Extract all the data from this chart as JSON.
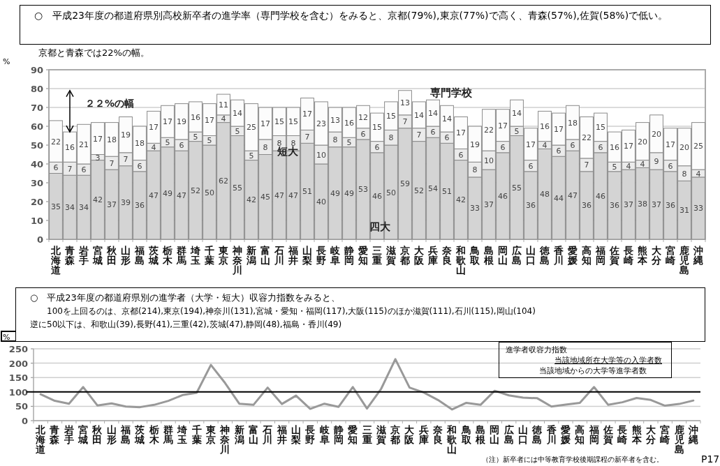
{
  "chart_data": [
    {
      "type": "bar",
      "stacked": true,
      "data_labels": true,
      "grid": "y",
      "title": "○　平成23年度の都道府県別高校新卒者の進学率（専門学校を含む）をみると、京都(79%),東京(77%)で高く、青森(57%),佐賀(58%)で低い。",
      "subtitle": "京都と青森では22%の幅。",
      "ylabel": "%",
      "ylim": [
        0,
        90
      ],
      "yticks": [
        0,
        10,
        20,
        30,
        40,
        50,
        60,
        70,
        80,
        90
      ],
      "categories": [
        "北海道",
        "青森",
        "岩手",
        "宮城",
        "秋田",
        "山形",
        "福島",
        "茨城",
        "栃木",
        "群馬",
        "埼玉",
        "千葉",
        "東京",
        "神奈川",
        "新潟",
        "富山",
        "石川",
        "福井",
        "山梨",
        "長野",
        "岐阜",
        "静岡",
        "愛知",
        "三重",
        "滋賀",
        "京都",
        "大阪",
        "兵庫",
        "奈良",
        "和歌山",
        "鳥取",
        "島根",
        "岡山",
        "広島",
        "山口",
        "徳島",
        "香川",
        "愛媛",
        "高知",
        "福岡",
        "佐賀",
        "長崎",
        "熊本",
        "大分",
        "宮崎",
        "鹿児島",
        "沖縄"
      ],
      "series": [
        {
          "name": "四大",
          "color": "#d4d4d4",
          "values": [
            35,
            34,
            34,
            42,
            37,
            39,
            36,
            47,
            49,
            47,
            52,
            50,
            62,
            55,
            42,
            45,
            47,
            47,
            51,
            40,
            49,
            49,
            53,
            46,
            50,
            59,
            52,
            54,
            51,
            42,
            33,
            37,
            46,
            55,
            36,
            48,
            44,
            47,
            36,
            46,
            36,
            37,
            38,
            37,
            36,
            31,
            33
          ]
        },
        {
          "name": "短大",
          "color": "#ebebeb",
          "values": [
            6,
            7,
            6,
            3,
            7,
            7,
            6,
            4,
            5,
            6,
            5,
            5,
            4,
            5,
            5,
            8,
            8,
            8,
            7,
            10,
            8,
            5,
            6,
            6,
            8,
            7,
            7,
            6,
            6,
            6,
            8,
            10,
            6,
            5,
            6,
            4,
            6,
            6,
            7,
            6,
            5,
            4,
            4,
            9,
            6,
            8,
            4
          ]
        },
        {
          "name": "専門学校",
          "color": "#fcfcfc",
          "values": [
            22,
            16,
            21,
            17,
            18,
            19,
            18,
            17,
            17,
            19,
            16,
            17,
            11,
            14,
            25,
            17,
            15,
            15,
            17,
            23,
            13,
            16,
            12,
            15,
            15,
            13,
            14,
            14,
            14,
            17,
            19,
            22,
            17,
            14,
            17,
            16,
            17,
            18,
            22,
            15,
            16,
            17,
            20,
            20,
            17,
            20,
            25
          ]
        }
      ],
      "annotations": [
        "２２%の幅"
      ]
    },
    {
      "type": "line",
      "grid": "y",
      "title": "○　平成23年度の都道府県別の進学者（大学・短大）収容力指数をみると、",
      "subtitle": "100を上回るのは、京都(214),東京(194),神奈川(131),宮城・愛知・福岡(117),大阪(115)のほか滋賀(111),石川(115),岡山(104)",
      "ylabel": "%",
      "ylim": [
        0,
        250
      ],
      "yticks": [
        0,
        50,
        100,
        150,
        200,
        250
      ],
      "categories": [
        "北海道",
        "青森",
        "岩手",
        "宮城",
        "秋田",
        "山形",
        "福島",
        "茨城",
        "栃木",
        "群馬",
        "埼玉",
        "千葉",
        "東京",
        "神奈川",
        "新潟",
        "富山",
        "石川",
        "福井",
        "山梨",
        "長野",
        "岐阜",
        "静岡",
        "愛知",
        "三重",
        "滋賀",
        "京都",
        "大阪",
        "兵庫",
        "奈良",
        "和歌山",
        "鳥取",
        "島根",
        "岡山",
        "広島",
        "山口",
        "徳島",
        "香川",
        "愛媛",
        "高知",
        "福岡",
        "佐賀",
        "長崎",
        "熊本",
        "大分",
        "宮崎",
        "鹿児島",
        "沖縄"
      ],
      "series": [
        {
          "color": "#999999",
          "values": [
            92,
            69,
            59,
            117,
            53,
            60,
            49,
            47,
            55,
            69,
            89,
            97,
            194,
            131,
            59,
            55,
            115,
            58,
            87,
            41,
            59,
            48,
            117,
            42,
            111,
            214,
            115,
            98,
            72,
            39,
            62,
            55,
            104,
            88,
            80,
            78,
            49,
            56,
            62,
            117,
            55,
            64,
            79,
            72,
            52,
            58,
            70
          ]
        }
      ],
      "ref_lines": [
        {
          "axis": "y",
          "value": 100,
          "color": "#000000"
        }
      ],
      "annotations": [
        "逆に50以下は、和歌山(39),長野(41),三重(42),茨城(47),静岡(48),福島・香川(49)",
        "進学者収容力指数",
        "当該地域所在大学等の入学者数",
        "当該地域からの大学等進学者数",
        "（注）新卒者には中等教育学校後期課程の新卒者を含む。",
        "P17"
      ]
    }
  ]
}
